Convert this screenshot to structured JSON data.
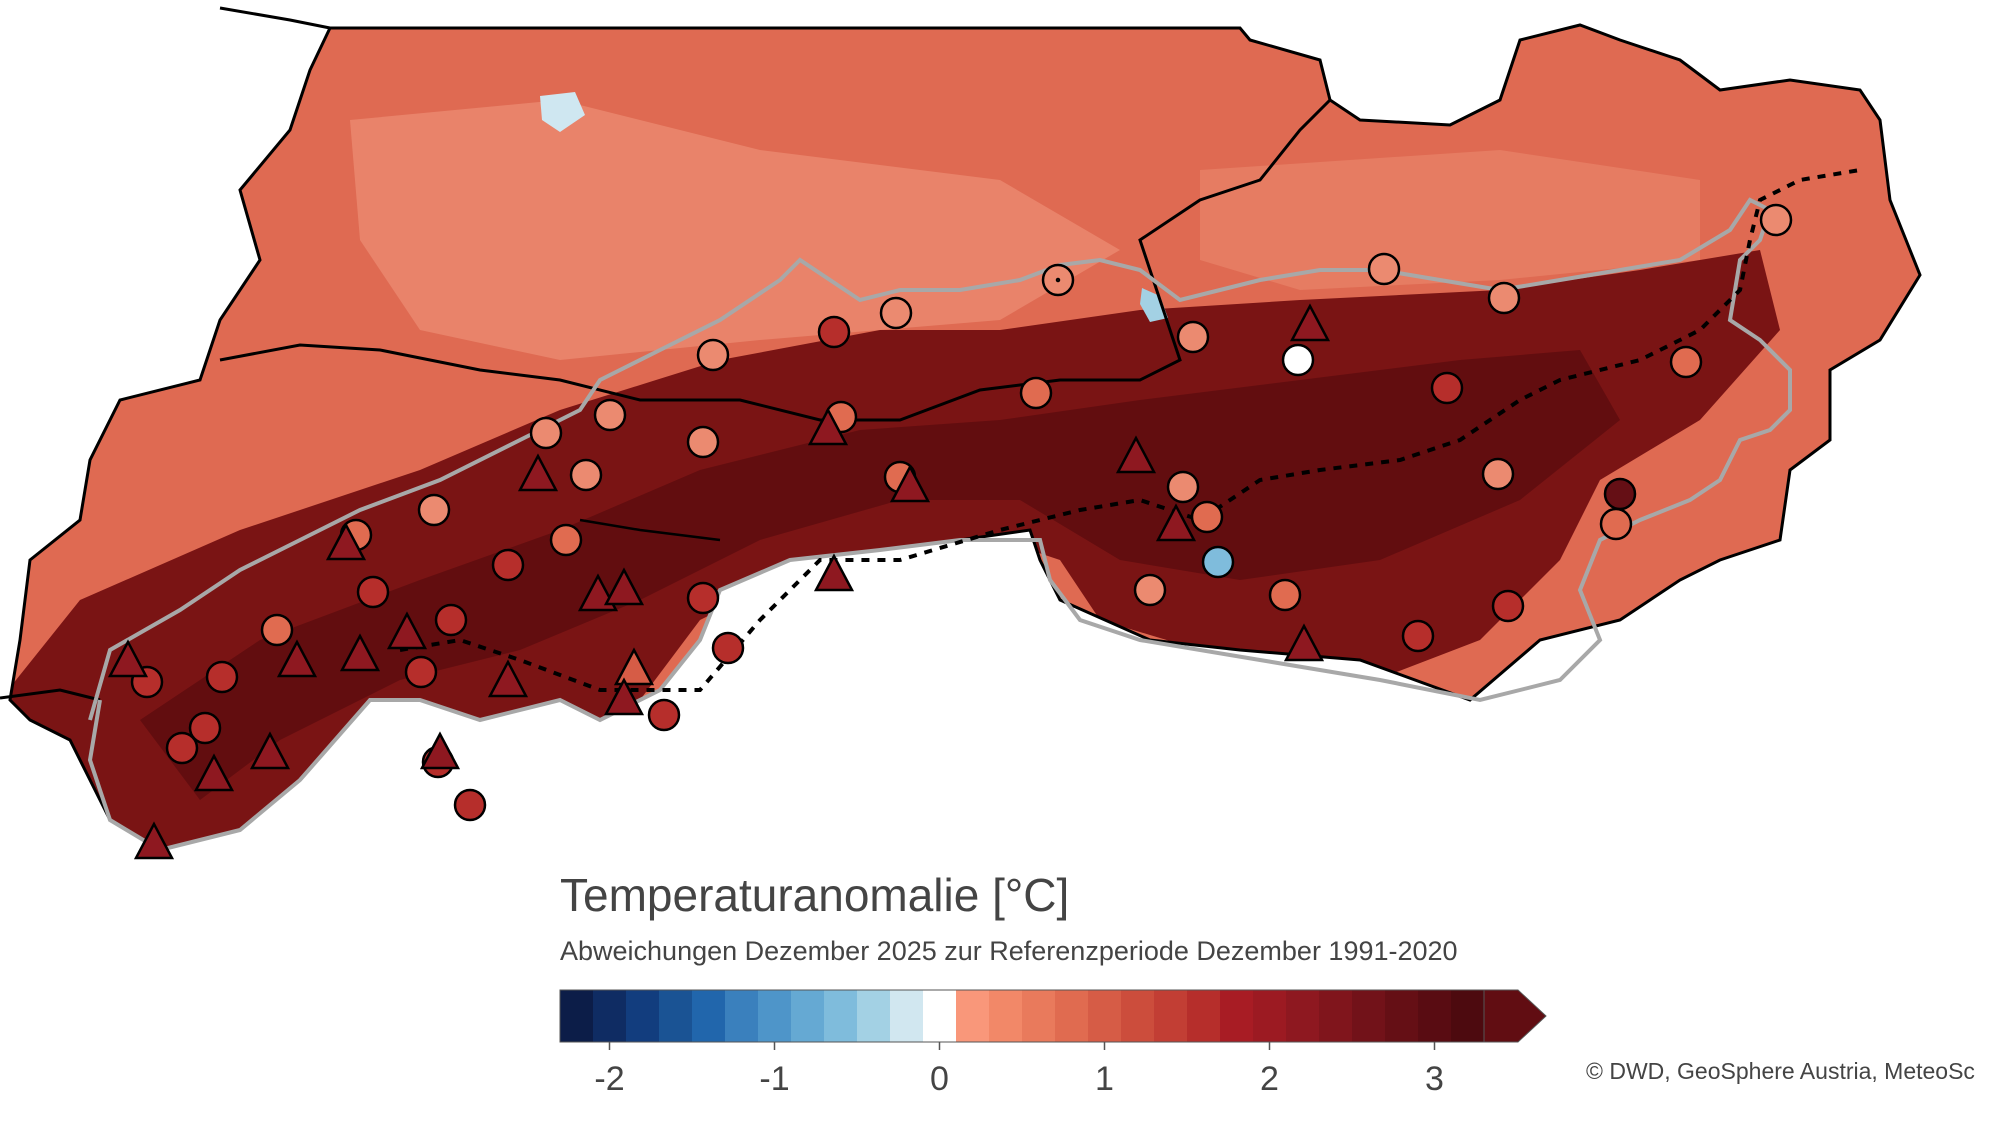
{
  "legend": {
    "title": "Temperaturanomalie [°C]",
    "subtitle": "Abweichungen Dezember 2025 zur Referenzperiode Dezember 1991-2020",
    "colors": [
      "#0c1d48",
      "#0f2c63",
      "#123d7e",
      "#1a5394",
      "#2166ac",
      "#3a80bd",
      "#4e95c9",
      "#65a9d3",
      "#7fbcdc",
      "#a3d1e4",
      "#d1e7f0",
      "#ffffff",
      "#f9977a",
      "#f28868",
      "#e97a5c",
      "#e06b50",
      "#d65c46",
      "#cc4d3c",
      "#c23e34",
      "#b62e2b",
      "#a81c24",
      "#9c1a22",
      "#8e1820",
      "#80151c",
      "#721219",
      "#650f15",
      "#590c12",
      "#4d0a0f",
      "#610d12"
    ],
    "ticks": [
      {
        "label": "-2",
        "value": -2
      },
      {
        "label": "-1",
        "value": -1
      },
      {
        "label": "0",
        "value": 0
      },
      {
        "label": "1",
        "value": 1
      },
      {
        "label": "2",
        "value": 2
      },
      {
        "label": "3",
        "value": 3
      }
    ]
  },
  "credit": "© DWD, GeoSphere Austria, MeteoSc",
  "map": {
    "colors": {
      "lowland": "#df6a52",
      "lowland_light": "#eb8a70",
      "alpine": "#7a1414",
      "alpine_dark": "#5c0b0e",
      "border": "#000000",
      "alpine_outline": "#a8a8a8",
      "negative": "#7fbcdc"
    },
    "station_colors": {
      "light": "#f28868",
      "medium": "#d65c46",
      "strong": "#b62e2b",
      "very_strong": "#8e1820",
      "extreme": "#650f15",
      "zero": "#ffffff",
      "negative": "#7fbcdc"
    }
  }
}
